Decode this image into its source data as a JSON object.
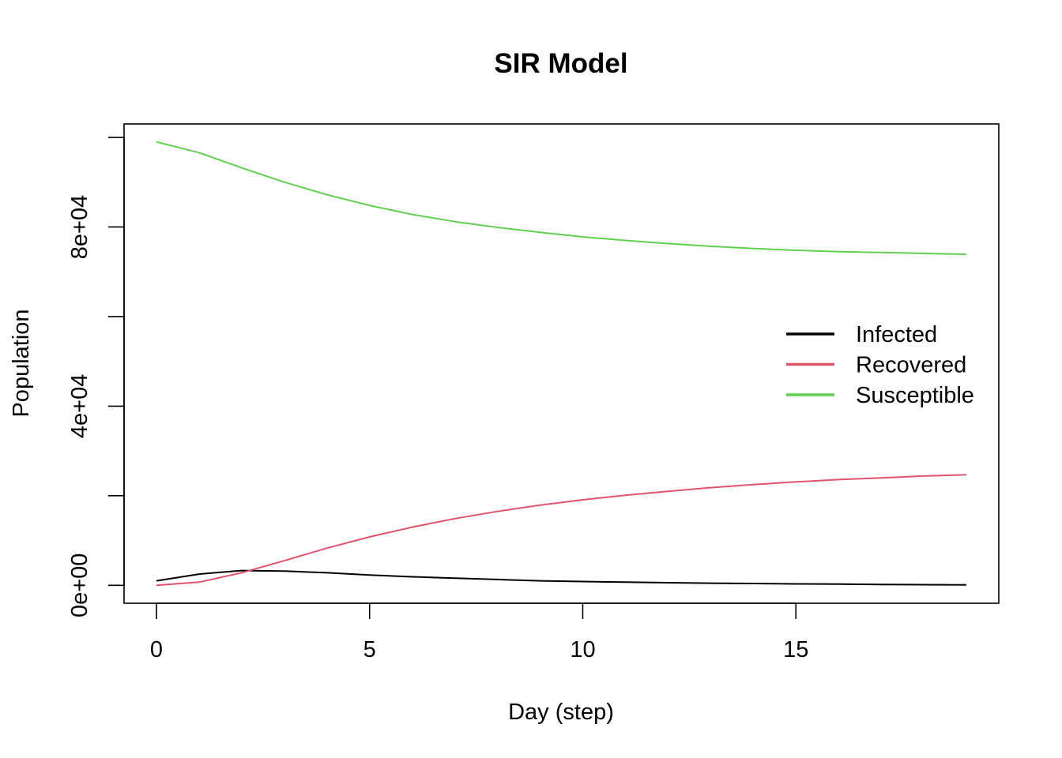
{
  "chart_data": {
    "type": "line",
    "title": "SIR Model",
    "xlabel": "Day (step)",
    "ylabel": "Population",
    "xlim": [
      -0.76,
      19.76
    ],
    "ylim": [
      -4000,
      103000
    ],
    "x_ticks": [
      0,
      5,
      10,
      15
    ],
    "x_tick_labels": [
      "0",
      "5",
      "10",
      "15"
    ],
    "y_ticks": [
      0,
      20000,
      40000,
      60000,
      80000,
      100000
    ],
    "y_tick_labels": [
      "0e+00",
      "",
      "4e+04",
      "",
      "8e+04",
      ""
    ],
    "grid": false,
    "legend_position": "right",
    "x": [
      0,
      1,
      2,
      3,
      4,
      5,
      6,
      7,
      8,
      9,
      10,
      11,
      12,
      13,
      14,
      15,
      16,
      17,
      18,
      19
    ],
    "series": [
      {
        "name": "Infected",
        "color": "#000000",
        "values": [
          1000,
          2500,
          3300,
          3200,
          2800,
          2300,
          1900,
          1600,
          1300,
          1000,
          850,
          700,
          580,
          480,
          400,
          320,
          260,
          200,
          150,
          100
        ]
      },
      {
        "name": "Recovered",
        "color": "#DF536B",
        "values": [
          0,
          700,
          2800,
          5500,
          8300,
          10800,
          13000,
          14900,
          16500,
          17900,
          19100,
          20100,
          21000,
          21800,
          22500,
          23100,
          23600,
          24000,
          24400,
          24700
        ]
      },
      {
        "name": "Susceptible",
        "color": "#61D04F",
        "values": [
          99000,
          96600,
          93200,
          90000,
          87200,
          84800,
          82800,
          81200,
          79900,
          78800,
          77800,
          77000,
          76300,
          75700,
          75200,
          74800,
          74500,
          74300,
          74100,
          73900
        ]
      }
    ]
  }
}
